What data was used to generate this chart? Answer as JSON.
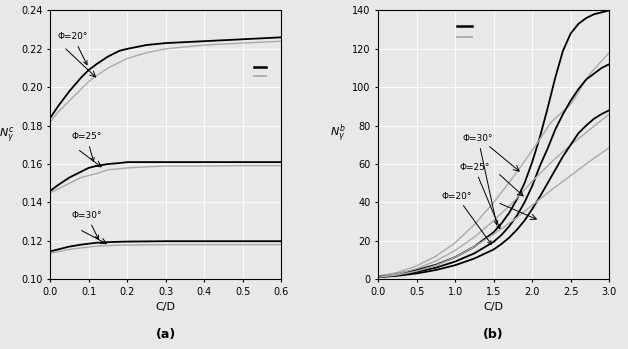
{
  "panel_a": {
    "xlabel": "C/D",
    "xlim": [
      0,
      0.6
    ],
    "ylim": [
      0.1,
      0.24
    ],
    "xticks": [
      0,
      0.1,
      0.2,
      0.3,
      0.4,
      0.5,
      0.6
    ],
    "yticks": [
      0.1,
      0.12,
      0.14,
      0.16,
      0.18,
      0.2,
      0.22,
      0.24
    ],
    "phi20_present": {
      "x": [
        0.0,
        0.02,
        0.05,
        0.08,
        0.1,
        0.12,
        0.15,
        0.18,
        0.2,
        0.25,
        0.3,
        0.4,
        0.5,
        0.6
      ],
      "y": [
        0.184,
        0.19,
        0.198,
        0.205,
        0.209,
        0.212,
        0.216,
        0.219,
        0.22,
        0.222,
        0.223,
        0.224,
        0.225,
        0.226
      ]
    },
    "phi20_leca": {
      "x": [
        0.0,
        0.02,
        0.05,
        0.08,
        0.1,
        0.12,
        0.15,
        0.18,
        0.2,
        0.25,
        0.3,
        0.4,
        0.5,
        0.6
      ],
      "y": [
        0.182,
        0.187,
        0.193,
        0.199,
        0.203,
        0.206,
        0.21,
        0.213,
        0.215,
        0.218,
        0.22,
        0.222,
        0.223,
        0.224
      ]
    },
    "phi25_present": {
      "x": [
        0.0,
        0.02,
        0.05,
        0.08,
        0.1,
        0.12,
        0.15,
        0.18,
        0.2,
        0.25,
        0.3,
        0.4,
        0.5,
        0.6
      ],
      "y": [
        0.146,
        0.149,
        0.153,
        0.156,
        0.158,
        0.159,
        0.16,
        0.1605,
        0.161,
        0.161,
        0.161,
        0.161,
        0.161,
        0.161
      ]
    },
    "phi25_leca": {
      "x": [
        0.0,
        0.02,
        0.05,
        0.08,
        0.1,
        0.12,
        0.15,
        0.18,
        0.2,
        0.25,
        0.3,
        0.4,
        0.5,
        0.6
      ],
      "y": [
        0.145,
        0.147,
        0.15,
        0.153,
        0.154,
        0.155,
        0.157,
        0.1575,
        0.158,
        0.1585,
        0.159,
        0.159,
        0.1592,
        0.1592
      ]
    },
    "phi30_present": {
      "x": [
        0.0,
        0.02,
        0.05,
        0.08,
        0.1,
        0.12,
        0.15,
        0.18,
        0.2,
        0.25,
        0.3,
        0.4,
        0.5,
        0.6
      ],
      "y": [
        0.1145,
        0.1155,
        0.117,
        0.118,
        0.1185,
        0.119,
        0.1193,
        0.1195,
        0.1196,
        0.1197,
        0.1198,
        0.1198,
        0.1198,
        0.1198
      ]
    },
    "phi30_leca": {
      "x": [
        0.0,
        0.02,
        0.05,
        0.08,
        0.1,
        0.12,
        0.15,
        0.18,
        0.2,
        0.25,
        0.3,
        0.4,
        0.5,
        0.6
      ],
      "y": [
        0.1135,
        0.1143,
        0.1155,
        0.1163,
        0.1168,
        0.1172,
        0.1175,
        0.1177,
        0.1178,
        0.1179,
        0.118,
        0.118,
        0.118,
        0.118
      ]
    }
  },
  "panel_b": {
    "xlabel": "C/D",
    "xlim": [
      0,
      3
    ],
    "ylim": [
      0,
      140
    ],
    "xticks": [
      0,
      0.5,
      1.0,
      1.5,
      2.0,
      2.5,
      3.0
    ],
    "yticks": [
      0,
      20,
      40,
      60,
      80,
      100,
      120,
      140
    ],
    "phi30_present": {
      "x": [
        0.0,
        0.25,
        0.5,
        0.75,
        1.0,
        1.25,
        1.5,
        1.6,
        1.7,
        1.8,
        1.9,
        2.0,
        2.1,
        2.2,
        2.3,
        2.4,
        2.5,
        2.6,
        2.7,
        2.8,
        2.9,
        3.0
      ],
      "y": [
        1.5,
        2.8,
        4.8,
        7.5,
        11.5,
        17.0,
        24.5,
        29.0,
        34.5,
        41.5,
        50.0,
        61.0,
        74.0,
        89.0,
        105.0,
        119.0,
        128.0,
        133.0,
        136.0,
        138.0,
        139.0,
        140.0
      ]
    },
    "phi30_leca": {
      "x": [
        0.0,
        0.25,
        0.5,
        0.75,
        1.0,
        1.25,
        1.5,
        1.75,
        2.0,
        2.25,
        2.5,
        2.75,
        3.0
      ],
      "y": [
        1.5,
        3.5,
        7.0,
        12.0,
        19.0,
        28.5,
        40.0,
        53.0,
        67.0,
        82.0,
        91.0,
        107.0,
        118.0
      ]
    },
    "phi25_present": {
      "x": [
        0.0,
        0.25,
        0.5,
        0.75,
        1.0,
        1.25,
        1.5,
        1.6,
        1.7,
        1.8,
        1.9,
        2.0,
        2.1,
        2.2,
        2.3,
        2.4,
        2.5,
        2.6,
        2.7,
        2.8,
        2.9,
        3.0
      ],
      "y": [
        1.2,
        2.2,
        3.8,
        6.0,
        9.2,
        13.5,
        19.5,
        23.0,
        27.5,
        33.0,
        40.0,
        48.5,
        59.0,
        68.0,
        78.0,
        86.0,
        93.0,
        99.0,
        104.0,
        107.0,
        110.0,
        112.0
      ]
    },
    "phi25_leca": {
      "x": [
        0.0,
        0.25,
        0.5,
        0.75,
        1.0,
        1.25,
        1.5,
        1.75,
        2.0,
        2.25,
        2.5,
        2.75,
        3.0
      ],
      "y": [
        1.2,
        2.8,
        5.5,
        9.5,
        15.0,
        22.0,
        30.5,
        40.0,
        51.0,
        61.0,
        70.0,
        78.0,
        86.0
      ]
    },
    "phi20_present": {
      "x": [
        0.0,
        0.25,
        0.5,
        0.75,
        1.0,
        1.25,
        1.5,
        1.6,
        1.7,
        1.8,
        1.9,
        2.0,
        2.1,
        2.2,
        2.3,
        2.4,
        2.5,
        2.6,
        2.7,
        2.8,
        2.9,
        3.0
      ],
      "y": [
        1.0,
        1.8,
        3.0,
        4.8,
        7.3,
        10.8,
        15.5,
        18.3,
        21.6,
        25.7,
        30.5,
        36.5,
        43.0,
        50.0,
        57.0,
        64.0,
        70.0,
        76.0,
        80.0,
        83.5,
        86.0,
        88.0
      ]
    },
    "phi20_leca": {
      "x": [
        0.0,
        0.25,
        0.5,
        0.75,
        1.0,
        1.25,
        1.5,
        1.75,
        2.0,
        2.25,
        2.5,
        2.75,
        3.0
      ],
      "y": [
        1.0,
        2.2,
        4.2,
        7.2,
        11.5,
        17.0,
        23.5,
        30.5,
        38.5,
        46.5,
        54.0,
        61.5,
        68.5
      ]
    }
  },
  "color_present": "#000000",
  "color_leca": "#aaaaaa",
  "lw_present": 1.3,
  "lw_leca": 1.0,
  "bg_color": "#e8e8e8"
}
